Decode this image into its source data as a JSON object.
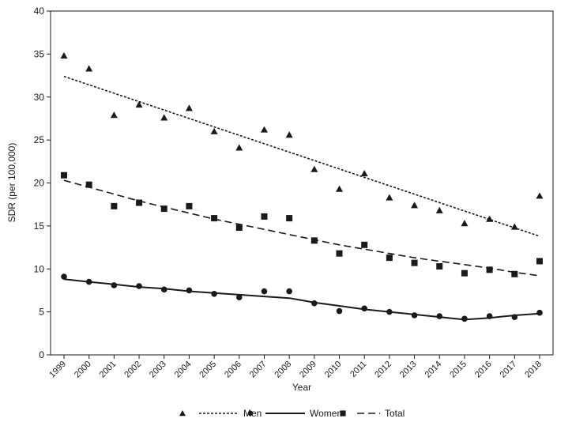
{
  "chart_data": {
    "type": "scatter",
    "xlabel": "Year",
    "ylabel": "SDR (per 100,000)",
    "ylim": [
      0,
      40
    ],
    "yticks": [
      0,
      5,
      10,
      15,
      20,
      25,
      30,
      35,
      40
    ],
    "x": [
      "1999",
      "2000",
      "2001",
      "2002",
      "2003",
      "2004",
      "2005",
      "2006",
      "2007",
      "2008",
      "2009",
      "2010",
      "2011",
      "2012",
      "2013",
      "2014",
      "2015",
      "2016",
      "2017",
      "2018"
    ],
    "grid": false,
    "legend_position": "bottom",
    "series": [
      {
        "name": "Men",
        "marker": "triangle",
        "line_style": "dotted",
        "values": [
          34.8,
          33.3,
          27.9,
          29.1,
          27.6,
          28.7,
          26.0,
          24.1,
          26.2,
          25.6,
          21.6,
          19.3,
          21.1,
          18.3,
          17.4,
          16.8,
          15.3,
          15.8,
          14.9,
          18.5
        ],
        "trend": [
          32.4,
          13.8
        ]
      },
      {
        "name": "Women",
        "marker": "circle",
        "line_style": "solid",
        "values": [
          9.1,
          8.5,
          8.1,
          8.0,
          7.6,
          7.5,
          7.1,
          6.7,
          7.4,
          7.4,
          6.0,
          5.1,
          5.4,
          5.0,
          4.6,
          4.5,
          4.2,
          4.5,
          4.4,
          4.9
        ],
        "trend_curve": [
          8.8,
          8.5,
          8.2,
          7.9,
          7.7,
          7.4,
          7.2,
          7.0,
          6.8,
          6.6,
          6.1,
          5.7,
          5.3,
          5.0,
          4.7,
          4.4,
          4.1,
          4.3,
          4.6,
          4.8
        ]
      },
      {
        "name": "Total",
        "marker": "square",
        "line_style": "dashed",
        "values": [
          20.9,
          19.8,
          17.3,
          17.7,
          17.0,
          17.3,
          15.9,
          14.8,
          16.1,
          15.9,
          13.3,
          11.8,
          12.8,
          11.3,
          10.7,
          10.3,
          9.5,
          9.9,
          9.4,
          10.9
        ],
        "trend_curve": [
          20.3,
          19.5,
          18.7,
          17.9,
          17.2,
          16.5,
          15.8,
          15.2,
          14.6,
          14.0,
          13.4,
          12.8,
          12.3,
          11.8,
          11.3,
          10.9,
          10.5,
          10.1,
          9.6,
          9.2
        ]
      }
    ]
  }
}
